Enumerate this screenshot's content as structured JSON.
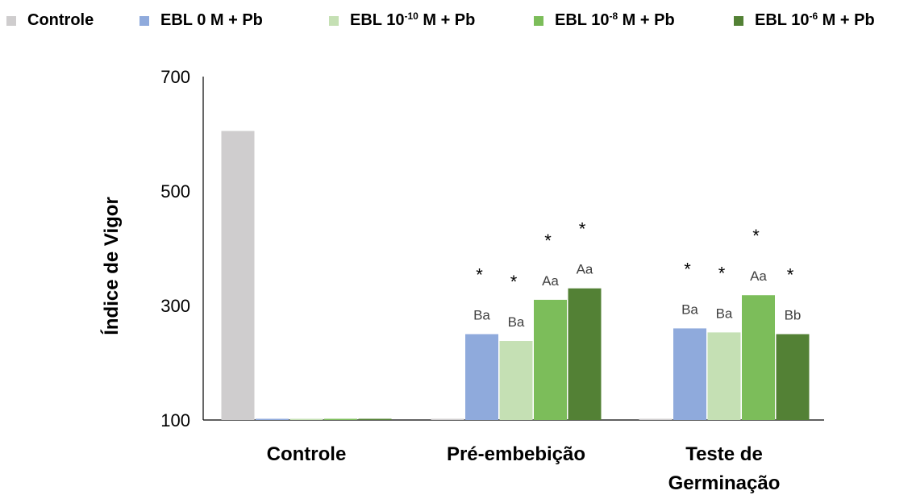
{
  "chart_data": {
    "type": "bar",
    "categories": [
      "Controle",
      "Pré-embebição",
      "Teste de Germinação"
    ],
    "category_lines": [
      [
        "Controle"
      ],
      [
        "Pré-embebição"
      ],
      [
        "Teste de",
        "Germinação"
      ]
    ],
    "ylabel": "Índice de Vigor",
    "ylim": [
      100,
      700
    ],
    "yticks": [
      100,
      300,
      500,
      700
    ],
    "grid": false,
    "legend_position": "top",
    "series": [
      {
        "name": "Controle",
        "legend": {
          "base": "Controle",
          "sup": "",
          "tail": ""
        },
        "color": "#cfcdce",
        "values": [
          605,
          null,
          null
        ],
        "labels": [
          "",
          "",
          ""
        ],
        "stars": [
          false,
          false,
          false
        ]
      },
      {
        "name": "EBL 0 M + Pb",
        "legend": {
          "base": "EBL 0 M + Pb",
          "sup": "",
          "tail": ""
        },
        "color": "#8faadc",
        "values": [
          null,
          250,
          260
        ],
        "labels": [
          "",
          "Ba",
          "Ba"
        ],
        "stars": [
          false,
          true,
          true
        ]
      },
      {
        "name": "EBL 10-10 M + Pb",
        "legend": {
          "base": "EBL 10",
          "sup": "-10",
          "tail": " M + Pb"
        },
        "color": "#c5e0b4",
        "values": [
          null,
          238,
          253
        ],
        "labels": [
          "",
          "Ba",
          "Ba"
        ],
        "stars": [
          false,
          true,
          true
        ]
      },
      {
        "name": "EBL 10-8 M + Pb",
        "legend": {
          "base": "EBL 10",
          "sup": "-8",
          "tail": " M + Pb"
        },
        "color": "#7cbd5a",
        "values": [
          null,
          310,
          318
        ],
        "labels": [
          "",
          "Aa",
          "Aa"
        ],
        "stars": [
          false,
          true,
          true
        ]
      },
      {
        "name": "EBL 10-6 M + Pb",
        "legend": {
          "base": "EBL 10",
          "sup": "-6",
          "tail": " M + Pb"
        },
        "color": "#538135",
        "values": [
          null,
          330,
          250
        ],
        "labels": [
          "",
          "Aa",
          "Bb"
        ],
        "stars": [
          false,
          true,
          true
        ]
      }
    ],
    "annotation_star": "*"
  }
}
